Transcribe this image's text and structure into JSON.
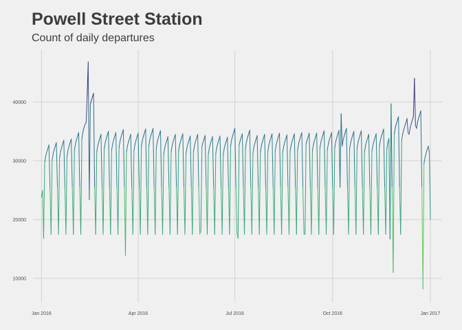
{
  "chart_data": {
    "type": "line",
    "title": "Powell Street Station",
    "subtitle": "Count of daily departures",
    "xlabel": "",
    "ylabel": "",
    "x_range": [
      "2015-12-24",
      "2017-01-12"
    ],
    "ylim": [
      5900,
      48800
    ],
    "grid": true,
    "legend": "none",
    "color_scale": "viridis (dark purple = high, yellow = low)",
    "x_ticks": [
      {
        "date": "2016-01-01",
        "label": "Jan 2016"
      },
      {
        "date": "2016-04-01",
        "label": "Apr 2016"
      },
      {
        "date": "2016-07-01",
        "label": "Jul 2016"
      },
      {
        "date": "2016-10-01",
        "label": "Oct 2016"
      },
      {
        "date": "2017-01-01",
        "label": "Jan 2017"
      }
    ],
    "y_ticks": [
      {
        "value": 10000,
        "label": "10000"
      },
      {
        "value": 20000,
        "label": "20000"
      },
      {
        "value": 30000,
        "label": "30000"
      },
      {
        "value": 40000,
        "label": "40000"
      }
    ],
    "daily_pattern": {
      "description": "weekly cycle: weekdays rising through the week, dip on weekends",
      "weekday_offsets": [
        -1500,
        -400,
        300,
        900,
        1500
      ],
      "saturday": 25500,
      "sunday": 17500
    },
    "series": [
      {
        "name": "departures",
        "weekly_weekday_base": [
          30200,
          31200,
          31600,
          32000,
          32200,
          33300,
          35300,
          40000,
          33000,
          33500,
          33300,
          33800,
          33000,
          33200,
          33900,
          34000,
          33600,
          32600,
          33000,
          33100,
          32700,
          33000,
          32800,
          32600,
          32700,
          32500,
          34000,
          33100,
          33700,
          32800,
          33000,
          33100,
          33200,
          32900,
          33100,
          33300,
          33200,
          33200,
          33600,
          33300,
          33700,
          34000,
          33500,
          33600,
          33000,
          33100,
          33900,
          33500,
          36000,
          35000,
          36000,
          37000,
          31000
        ],
        "overrides": {
          "2016-01-01": 23800,
          "2016-01-02": 25000,
          "2016-01-03": 16800,
          "2016-02-12": 36500,
          "2016-02-13": 41000,
          "2016-02-14": 46800,
          "2016-02-15": 23400,
          "2016-03-20": 13900,
          "2016-05-30": 18000,
          "2016-07-04": 16800,
          "2016-09-05": 17500,
          "2016-10-09": 38000,
          "2016-11-24": 16700,
          "2016-11-25": 39700,
          "2016-11-27": 11000,
          "2016-12-10": 37200,
          "2016-12-11": 34800,
          "2016-12-17": 44000,
          "2016-12-18": 36000,
          "2016-12-25": 8200,
          "2016-12-31": 31500,
          "2017-01-01": 20000
        }
      }
    ]
  }
}
